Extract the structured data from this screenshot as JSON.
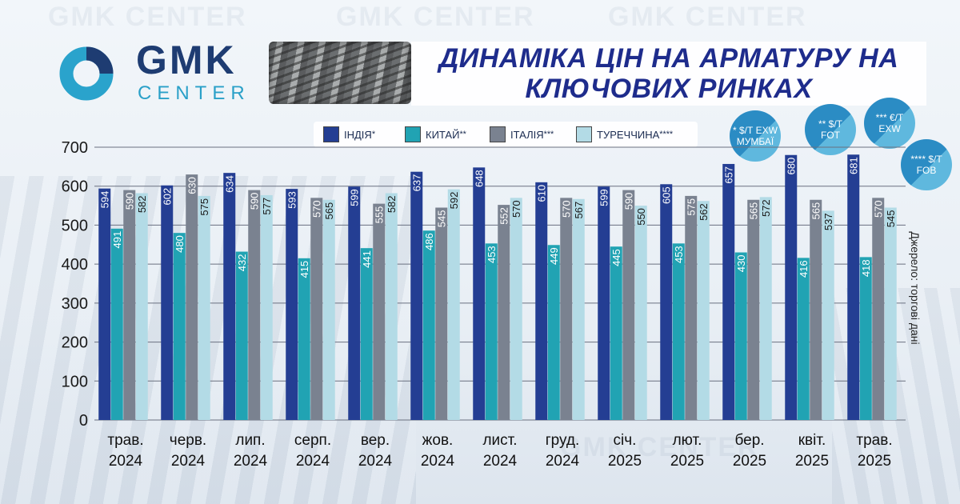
{
  "brand": {
    "logo_main": "GMK",
    "logo_sub": "CENTER",
    "watermark": "GMK CENTER"
  },
  "title": {
    "line1": "ДИНАМІКА ЦІН НА АРМАТУРУ НА",
    "line2": "КЛЮЧОВИХ РИНКАХ"
  },
  "source": "Джерело: торгові дані",
  "notes": [
    {
      "line1": "* $/Т EXW",
      "line2": "МУМБАЇ"
    },
    {
      "line1": "** $/Т",
      "line2": "FOT"
    },
    {
      "line1": "*** €/Т",
      "line2": "EXW"
    },
    {
      "line1": "**** $/Т",
      "line2": "FOB"
    }
  ],
  "colors": {
    "accent": "#1e2c8c",
    "grid": "#6a7080"
  },
  "chart_data": {
    "type": "bar",
    "title": "ДИНАМІКА ЦІН НА АРМАТУРУ НА КЛЮЧОВИХ РИНКАХ",
    "categories": [
      [
        "трав.",
        "2024"
      ],
      [
        "черв.",
        "2024"
      ],
      [
        "лип.",
        "2024"
      ],
      [
        "серп.",
        "2024"
      ],
      [
        "вер.",
        "2024"
      ],
      [
        "жов.",
        "2024"
      ],
      [
        "лист.",
        "2024"
      ],
      [
        "груд.",
        "2024"
      ],
      [
        "січ.",
        "2025"
      ],
      [
        "лют.",
        "2025"
      ],
      [
        "бер.",
        "2025"
      ],
      [
        "квіт.",
        "2025"
      ],
      [
        "трав.",
        "2025"
      ]
    ],
    "ylim": [
      0,
      700
    ],
    "yticks": [
      0,
      100,
      200,
      300,
      400,
      500,
      600,
      700
    ],
    "grid": true,
    "legend_position": "top",
    "series": [
      {
        "name": "ІНДІЯ",
        "marker": "*",
        "color": "#243e93",
        "values": [
          594,
          602,
          634,
          593,
          599,
          637,
          648,
          610,
          599,
          605,
          657,
          680,
          681
        ]
      },
      {
        "name": "КИТАЙ",
        "marker": "**",
        "color": "#21a3b3",
        "values": [
          491,
          480,
          432,
          415,
          441,
          486,
          453,
          449,
          445,
          453,
          430,
          416,
          418
        ]
      },
      {
        "name": "ІТАЛІЯ",
        "marker": "***",
        "color": "#7a8290",
        "values": [
          590,
          630,
          590,
          570,
          555,
          545,
          552,
          570,
          590,
          575,
          565,
          565,
          570
        ]
      },
      {
        "name": "ТУРЕЧЧИНА",
        "marker": "****",
        "color": "#b3dbe6",
        "values": [
          582,
          575,
          577,
          565,
          582,
          592,
          570,
          567,
          550,
          562,
          572,
          537,
          545
        ]
      }
    ]
  }
}
